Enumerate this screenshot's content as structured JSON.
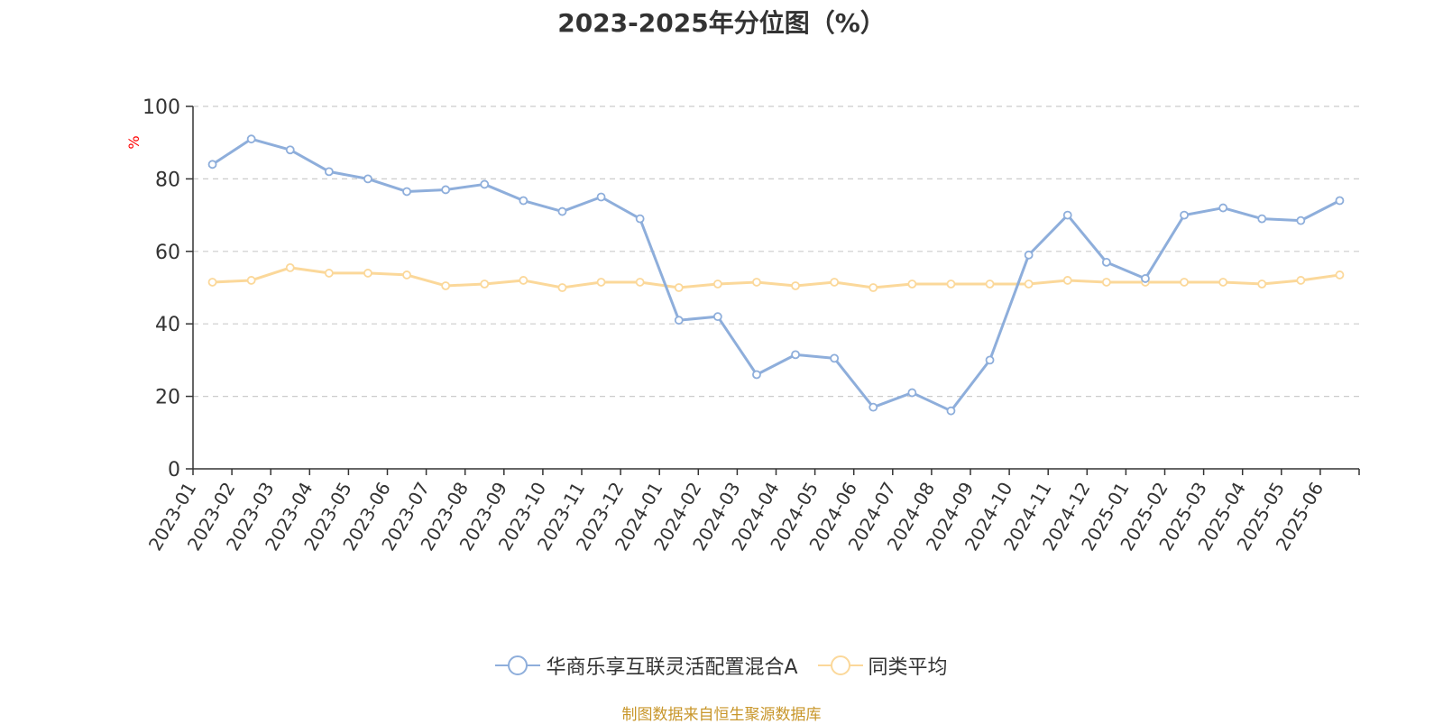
{
  "chart_data": {
    "type": "line",
    "title": "2023-2025年分位图（%）",
    "ylabel": "%",
    "xlabel": "",
    "ylim": [
      0,
      100
    ],
    "yticks": [
      "0",
      "20",
      "40",
      "60",
      "80",
      "100"
    ],
    "grid": true,
    "legend_position": "bottom-center",
    "categories": [
      "2023-01",
      "2023-02",
      "2023-03",
      "2023-04",
      "2023-05",
      "2023-06",
      "2023-07",
      "2023-08",
      "2023-09",
      "2023-10",
      "2023-11",
      "2023-12",
      "2024-01",
      "2024-02",
      "2024-03",
      "2024-04",
      "2024-05",
      "2024-06",
      "2024-07",
      "2024-08",
      "2024-09",
      "2024-10",
      "2024-11",
      "2024-12",
      "2025-01",
      "2025-02",
      "2025-03",
      "2025-04",
      "2025-05",
      "2025-06"
    ],
    "series": [
      {
        "name": "华商乐享互联灵活配置混合A",
        "color": "#8eaedb",
        "values": [
          84,
          91,
          88,
          82,
          80,
          76.5,
          77,
          78.5,
          74,
          71,
          75,
          69,
          41,
          42,
          26,
          31.5,
          30.5,
          17,
          21,
          16,
          30,
          59,
          70,
          57,
          52.5,
          70,
          72,
          69,
          68.5,
          74
        ]
      },
      {
        "name": "同类平均",
        "color": "#fbd89a",
        "values": [
          51.5,
          52,
          55.5,
          54,
          54,
          53.5,
          50.5,
          51,
          52,
          50,
          51.5,
          51.5,
          50,
          51,
          51.5,
          50.5,
          51.5,
          50,
          51,
          51,
          51,
          51,
          52,
          51.5,
          51.5,
          51.5,
          51.5,
          51,
          52,
          53.5
        ]
      }
    ]
  },
  "footer": {
    "source": "制图数据来自恒生聚源数据库"
  },
  "colors": {
    "axis": "#333333",
    "grid": "#cccccc",
    "ylabel": "#ff0000",
    "source": "#c8962a"
  }
}
